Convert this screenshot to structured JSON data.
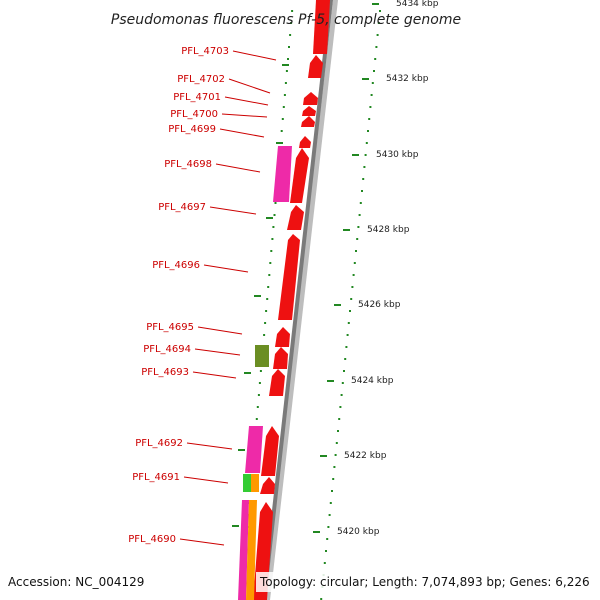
{
  "title": "Pseudomonas fluorescens Pf-5, complete genome",
  "footer": {
    "accession": "Accession: NC_004129",
    "topology": "Topology: circular; Length: 7,074,893 bp; Genes: 6,226"
  },
  "colors": {
    "forward_gene": "#ee1111",
    "reverse_gene": "#ee1111",
    "label": "#cc0000",
    "leader": "#cc0000",
    "ticks": "#228822",
    "backbone_light": "#bdbdbd",
    "backbone_dark": "#7a7a7a",
    "magenta": "#ee2aa8",
    "orange": "#ff9900",
    "green": "#33cc33",
    "olive": "#6b8e23"
  },
  "genes": [
    {
      "label": "PFL_4703"
    },
    {
      "label": "PFL_4702"
    },
    {
      "label": "PFL_4701"
    },
    {
      "label": "PFL_4700"
    },
    {
      "label": "PFL_4699"
    },
    {
      "label": "PFL_4698"
    },
    {
      "label": "PFL_4697"
    },
    {
      "label": "PFL_4696"
    },
    {
      "label": "PFL_4695"
    },
    {
      "label": "PFL_4694"
    },
    {
      "label": "PFL_4693"
    },
    {
      "label": "PFL_4692"
    },
    {
      "label": "PFL_4691"
    },
    {
      "label": "PFL_4690"
    }
  ],
  "kbp_labels": [
    {
      "text": "5434 kbp"
    },
    {
      "text": "5432 kbp"
    },
    {
      "text": "5430 kbp"
    },
    {
      "text": "5428 kbp"
    },
    {
      "text": "5426 kbp"
    },
    {
      "text": "5424 kbp"
    },
    {
      "text": "5422 kbp"
    },
    {
      "text": "5420 kbp"
    }
  ]
}
